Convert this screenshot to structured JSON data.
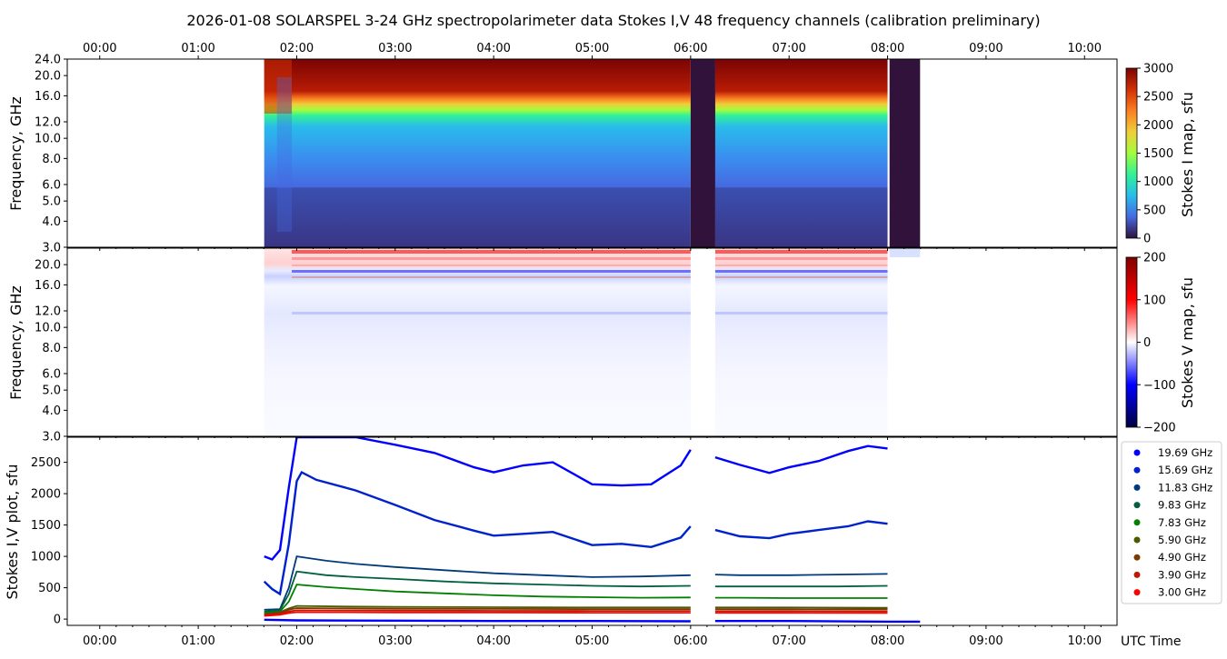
{
  "title": "2026-01-08  SOLARSPEL  3-24 GHz spectropolarimeter data   Stokes I,V   48 frequency channels   (calibration preliminary)",
  "chart_data": [
    {
      "type": "heatmap",
      "name": "Stokes I map",
      "ylabel": "Frequency, GHz",
      "x_ticks": [
        "00:00",
        "01:00",
        "02:00",
        "03:00",
        "04:00",
        "05:00",
        "06:00",
        "07:00",
        "08:00",
        "09:00",
        "10:00"
      ],
      "xlim_hours": [
        -0.33,
        10.33
      ],
      "y_ticks": [
        "3.0",
        "4.0",
        "5.0",
        "6.0",
        "8.0",
        "10.0",
        "12.0",
        "16.0",
        "20.0",
        "24.0"
      ],
      "ylim": [
        3.0,
        24.0
      ],
      "y_scale": "log",
      "colorbar": {
        "label": "Stokes I map, sfu",
        "ticks": [
          "0",
          "500",
          "1000",
          "1500",
          "2000",
          "2500",
          "3000"
        ],
        "range": [
          0,
          3000
        ]
      },
      "data_extent_hours": [
        1.67,
        8.33
      ],
      "gaps_hours": [
        [
          6.0,
          6.25
        ],
        [
          8.02,
          8.33
        ]
      ],
      "colors": [
        "#30123b",
        "#4669e0",
        "#28bceb",
        "#32f197",
        "#a4fc3c",
        "#eecf3a",
        "#fb7e21",
        "#d02f05",
        "#7a0403"
      ]
    },
    {
      "type": "heatmap",
      "name": "Stokes V map",
      "ylabel": "Frequency, GHz",
      "y_ticks": [
        "3.0",
        "4.0",
        "5.0",
        "6.0",
        "8.0",
        "10.0",
        "12.0",
        "16.0",
        "20.0"
      ],
      "ylim": [
        3.0,
        24.0
      ],
      "y_scale": "log",
      "colorbar": {
        "label": "Stokes V map, sfu",
        "ticks": [
          "200",
          "100",
          "0",
          "−100",
          "−200"
        ],
        "range": [
          -200,
          200
        ]
      },
      "colors": [
        "#00003f",
        "#0000ff",
        "#ffffff",
        "#ff0000",
        "#7f0000"
      ]
    },
    {
      "type": "scatter",
      "name": "Stokes I,V plot",
      "ylabel": "Stokes I,V plot, sfu",
      "xlabel": "UTC Time",
      "ylim": [
        -100,
        2900
      ],
      "y_ticks": [
        "0",
        "500",
        "1000",
        "1500",
        "2000",
        "2500"
      ],
      "x_ticks": [
        "00:00",
        "01:00",
        "02:00",
        "03:00",
        "04:00",
        "05:00",
        "06:00",
        "07:00",
        "08:00",
        "09:00",
        "10:00"
      ],
      "legend_position": "right",
      "series": [
        {
          "name": "19.69 GHz",
          "color": "#0000ff",
          "x": [
            1.67,
            1.75,
            1.83,
            1.92,
            2.0,
            2.3,
            2.6,
            3.0,
            3.4,
            3.8,
            4.0,
            4.3,
            4.6,
            5.0,
            5.3,
            5.6,
            5.9,
            6.0,
            6.25,
            6.5,
            6.8,
            7.0,
            7.3,
            7.6,
            7.8,
            8.0
          ],
          "y": [
            1000,
            950,
            1100,
            2100,
            2900,
            2900,
            2900,
            2780,
            2650,
            2420,
            2340,
            2450,
            2500,
            2150,
            2130,
            2150,
            2450,
            2700,
            2580,
            2460,
            2330,
            2420,
            2520,
            2680,
            2760,
            2720
          ]
        },
        {
          "name": "15.69 GHz",
          "color": "#0022cc",
          "x": [
            1.67,
            1.75,
            1.83,
            1.92,
            2.0,
            2.05,
            2.2,
            2.6,
            3.0,
            3.4,
            3.8,
            4.0,
            4.3,
            4.6,
            5.0,
            5.3,
            5.6,
            5.9,
            6.0,
            6.25,
            6.5,
            6.8,
            7.0,
            7.3,
            7.6,
            7.8,
            8.0
          ],
          "y": [
            600,
            480,
            400,
            1200,
            2200,
            2340,
            2220,
            2050,
            1820,
            1580,
            1410,
            1330,
            1360,
            1390,
            1180,
            1200,
            1150,
            1300,
            1480,
            1420,
            1320,
            1290,
            1360,
            1420,
            1480,
            1560,
            1520
          ]
        },
        {
          "name": "11.83 GHz",
          "color": "#003a7a",
          "x": [
            1.67,
            1.83,
            1.92,
            2.0,
            2.3,
            2.6,
            3.0,
            3.5,
            4.0,
            4.5,
            5.0,
            5.5,
            6.0,
            6.25,
            6.5,
            7.0,
            7.5,
            8.0
          ],
          "y": [
            150,
            160,
            500,
            1000,
            930,
            880,
            830,
            780,
            730,
            700,
            670,
            680,
            700,
            710,
            700,
            700,
            710,
            720
          ]
        },
        {
          "name": "9.83 GHz",
          "color": "#006040",
          "x": [
            1.67,
            1.83,
            1.92,
            2.0,
            2.3,
            2.6,
            3.0,
            3.5,
            4.0,
            4.5,
            5.0,
            5.5,
            6.0,
            6.25,
            6.5,
            7.0,
            7.5,
            8.0
          ],
          "y": [
            120,
            140,
            400,
            760,
            700,
            670,
            640,
            600,
            570,
            550,
            530,
            520,
            530,
            520,
            520,
            520,
            520,
            530
          ]
        },
        {
          "name": "7.83 GHz",
          "color": "#008000",
          "x": [
            1.67,
            1.83,
            1.92,
            2.0,
            2.3,
            2.6,
            3.0,
            3.5,
            4.0,
            4.5,
            5.0,
            5.5,
            6.0,
            6.25,
            6.5,
            7.0,
            7.5,
            8.0
          ],
          "y": [
            100,
            120,
            280,
            550,
            510,
            480,
            440,
            410,
            380,
            360,
            350,
            340,
            345,
            340,
            340,
            335,
            335,
            335
          ]
        },
        {
          "name": "5.90 GHz",
          "color": "#4a5a00",
          "x": [
            1.67,
            1.83,
            1.92,
            2.0,
            2.5,
            3.0,
            4.0,
            5.0,
            6.0,
            6.25,
            7.0,
            8.0
          ],
          "y": [
            80,
            110,
            170,
            210,
            200,
            195,
            190,
            185,
            185,
            185,
            185,
            180
          ]
        },
        {
          "name": "4.90 GHz",
          "color": "#7a3a00",
          "x": [
            1.67,
            1.83,
            1.92,
            2.0,
            2.5,
            3.0,
            4.0,
            5.0,
            6.0,
            6.25,
            7.0,
            8.0
          ],
          "y": [
            70,
            100,
            150,
            175,
            170,
            165,
            162,
            160,
            160,
            160,
            158,
            156
          ]
        },
        {
          "name": "3.90 GHz",
          "color": "#c01800",
          "x": [
            1.67,
            1.83,
            1.92,
            2.0,
            2.5,
            3.0,
            4.0,
            5.0,
            6.0,
            6.25,
            7.0,
            8.0
          ],
          "y": [
            60,
            85,
            120,
            140,
            138,
            135,
            132,
            130,
            130,
            128,
            127,
            125
          ]
        },
        {
          "name": "3.00 GHz",
          "color": "#ff0000",
          "x": [
            1.67,
            1.83,
            1.92,
            2.0,
            2.5,
            3.0,
            4.0,
            5.0,
            6.0,
            6.25,
            7.0,
            8.0
          ],
          "y": [
            50,
            70,
            95,
            110,
            108,
            106,
            104,
            102,
            102,
            100,
            100,
            98
          ]
        }
      ],
      "v_series": {
        "color": "#0000ff",
        "x": [
          1.67,
          2.0,
          3.0,
          4.0,
          5.0,
          6.0,
          6.25,
          7.0,
          8.0,
          8.33
        ],
        "y": [
          -10,
          -20,
          -25,
          -30,
          -30,
          -35,
          -30,
          -30,
          -40,
          -40
        ]
      }
    }
  ]
}
